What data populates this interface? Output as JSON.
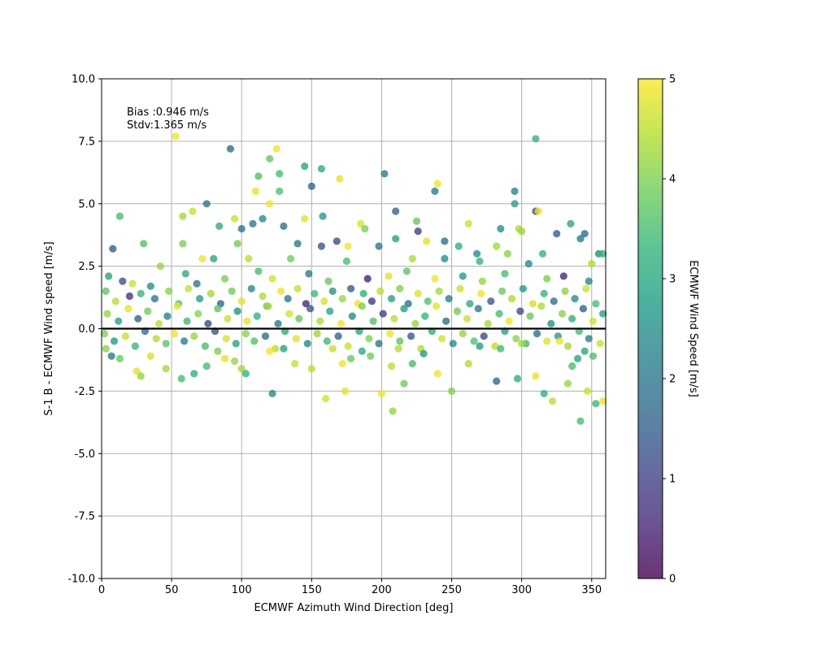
{
  "chart_data": {
    "type": "scatter",
    "title": "",
    "xlabel": "ECMWF Azimuth Wind Direction [deg]",
    "ylabel": "S-1 B - ECMWF Wind speed [m/s]",
    "xlim": [
      0,
      360
    ],
    "ylim": [
      -10,
      10
    ],
    "x_ticks": [
      "0",
      "50",
      "100",
      "150",
      "200",
      "250",
      "300",
      "350"
    ],
    "y_ticks": [
      "-10.0",
      "-7.5",
      "-5.0",
      "-2.5",
      "0.0",
      "2.5",
      "5.0",
      "7.5",
      "10.0"
    ],
    "grid": true,
    "zero_line": 0,
    "colormap": "viridis",
    "colorbar": {
      "label": "ECMWF Wind Speed [m/s]",
      "range": [
        0,
        5
      ],
      "ticks": [
        "0",
        "1",
        "2",
        "3",
        "4",
        "5"
      ],
      "colors": [
        "#440154",
        "#482878",
        "#3e4989",
        "#31688e",
        "#26828e",
        "#1f9e89",
        "#35b779",
        "#6ece58",
        "#b5de2b",
        "#fde725"
      ]
    },
    "annotations": [
      "Bias :0.946 m/s",
      "Stdv:1.365 m/s"
    ],
    "points": [
      [
        53,
        7.7,
        4.9
      ],
      [
        92,
        7.2,
        1.8
      ],
      [
        125,
        7.2,
        4.9
      ],
      [
        310,
        7.6,
        3.3
      ],
      [
        120,
        6.8,
        3.8
      ],
      [
        145,
        6.5,
        3.0
      ],
      [
        157,
        6.4,
        3.1
      ],
      [
        127,
        6.2,
        3.5
      ],
      [
        112,
        6.1,
        3.6
      ],
      [
        170,
        6.0,
        4.8
      ],
      [
        202,
        6.2,
        2.2
      ],
      [
        150,
        5.7,
        1.6
      ],
      [
        238,
        5.5,
        2.2
      ],
      [
        240,
        5.8,
        4.9
      ],
      [
        295,
        5.5,
        2.3
      ],
      [
        110,
        5.5,
        4.8
      ],
      [
        127,
        5.5,
        3.6
      ],
      [
        295,
        5.0,
        2.9
      ],
      [
        120,
        5.0,
        4.9
      ],
      [
        75,
        5.0,
        1.9
      ],
      [
        210,
        4.7,
        1.6
      ],
      [
        310,
        4.7,
        1.3
      ],
      [
        312,
        4.7,
        4.9
      ],
      [
        65,
        4.7,
        4.6
      ],
      [
        58,
        4.5,
        4.3
      ],
      [
        13,
        4.5,
        3.5
      ],
      [
        158,
        4.5,
        2.7
      ],
      [
        185,
        4.2,
        4.7
      ],
      [
        188,
        4.0,
        4.0
      ],
      [
        225,
        4.3,
        3.8
      ],
      [
        262,
        4.2,
        4.6
      ],
      [
        335,
        4.2,
        3.0
      ],
      [
        115,
        4.4,
        2.5
      ],
      [
        145,
        4.4,
        4.8
      ],
      [
        95,
        4.4,
        4.6
      ],
      [
        100,
        4.0,
        1.9
      ],
      [
        108,
        4.2,
        2.2
      ],
      [
        84,
        4.1,
        3.1
      ],
      [
        130,
        4.1,
        1.9
      ],
      [
        285,
        4.0,
        2.6
      ],
      [
        298,
        4.0,
        4.4
      ],
      [
        345,
        3.8,
        1.9
      ],
      [
        325,
        3.8,
        1.5
      ],
      [
        342,
        3.6,
        2.0
      ],
      [
        300,
        3.9,
        4.2
      ],
      [
        226,
        3.9,
        1.0
      ],
      [
        232,
        3.5,
        4.8
      ],
      [
        245,
        3.5,
        1.8
      ],
      [
        255,
        3.3,
        3.2
      ],
      [
        282,
        3.3,
        4.3
      ],
      [
        8,
        3.2,
        1.5
      ],
      [
        30,
        3.4,
        3.6
      ],
      [
        58,
        3.4,
        4.0
      ],
      [
        97,
        3.4,
        3.9
      ],
      [
        140,
        3.4,
        2.0
      ],
      [
        157,
        3.3,
        1.4
      ],
      [
        168,
        3.5,
        1.2
      ],
      [
        176,
        3.3,
        4.9
      ],
      [
        198,
        3.3,
        2.0
      ],
      [
        210,
        3.6,
        2.9
      ],
      [
        268,
        3.0,
        2.5
      ],
      [
        355,
        3.0,
        2.5
      ],
      [
        358,
        3.0,
        3.2
      ],
      [
        315,
        3.0,
        3.3
      ],
      [
        290,
        3.0,
        4.1
      ],
      [
        72,
        2.8,
        4.9
      ],
      [
        80,
        2.8,
        3.0
      ],
      [
        105,
        2.8,
        4.5
      ],
      [
        135,
        2.8,
        3.9
      ],
      [
        175,
        2.7,
        3.5
      ],
      [
        222,
        2.8,
        4.4
      ],
      [
        245,
        2.8,
        2.5
      ],
      [
        270,
        2.7,
        3.3
      ],
      [
        305,
        2.6,
        2.4
      ],
      [
        350,
        2.6,
        4.4
      ],
      [
        5,
        2.1,
        2.9
      ],
      [
        15,
        1.9,
        1.3
      ],
      [
        22,
        1.8,
        4.6
      ],
      [
        35,
        1.7,
        2.6
      ],
      [
        42,
        2.5,
        4.2
      ],
      [
        60,
        2.2,
        3.1
      ],
      [
        68,
        1.8,
        2.0
      ],
      [
        88,
        2.0,
        4.0
      ],
      [
        112,
        2.3,
        3.5
      ],
      [
        122,
        2.0,
        4.7
      ],
      [
        148,
        2.2,
        2.2
      ],
      [
        162,
        1.9,
        3.8
      ],
      [
        190,
        2.0,
        0.5
      ],
      [
        205,
        2.1,
        4.8
      ],
      [
        218,
        2.3,
        3.7
      ],
      [
        238,
        2.0,
        4.9
      ],
      [
        258,
        2.1,
        2.8
      ],
      [
        272,
        1.9,
        4.2
      ],
      [
        288,
        2.2,
        3.5
      ],
      [
        318,
        2.0,
        4.0
      ],
      [
        330,
        2.1,
        0.6
      ],
      [
        348,
        1.9,
        2.3
      ],
      [
        3,
        1.5,
        3.7
      ],
      [
        10,
        1.1,
        4.5
      ],
      [
        20,
        1.3,
        0.8
      ],
      [
        28,
        1.4,
        3.3
      ],
      [
        38,
        1.2,
        2.0
      ],
      [
        48,
        1.5,
        4.1
      ],
      [
        55,
        1.0,
        3.6
      ],
      [
        62,
        1.6,
        4.6
      ],
      [
        70,
        1.2,
        2.8
      ],
      [
        78,
        1.4,
        4.3
      ],
      [
        85,
        1.0,
        1.7
      ],
      [
        93,
        1.5,
        3.9
      ],
      [
        100,
        1.1,
        4.8
      ],
      [
        107,
        1.6,
        2.4
      ],
      [
        115,
        1.3,
        4.4
      ],
      [
        118,
        0.9,
        3.7
      ],
      [
        128,
        1.5,
        4.9
      ],
      [
        133,
        1.2,
        2.1
      ],
      [
        140,
        1.6,
        4.6
      ],
      [
        146,
        1.0,
        0.6
      ],
      [
        152,
        1.4,
        3.4
      ],
      [
        159,
        1.1,
        4.7
      ],
      [
        165,
        1.5,
        2.6
      ],
      [
        172,
        1.2,
        4.2
      ],
      [
        178,
        1.6,
        1.5
      ],
      [
        183,
        1.0,
        4.9
      ],
      [
        187,
        1.4,
        3.2
      ],
      [
        193,
        1.1,
        0.9
      ],
      [
        199,
        1.5,
        4.5
      ],
      [
        207,
        1.2,
        2.9
      ],
      [
        213,
        1.6,
        4.0
      ],
      [
        219,
        1.0,
        1.9
      ],
      [
        226,
        1.4,
        4.8
      ],
      [
        233,
        1.1,
        3.6
      ],
      [
        241,
        1.5,
        4.3
      ],
      [
        248,
        1.2,
        2.2
      ],
      [
        256,
        1.6,
        4.6
      ],
      [
        263,
        1.0,
        3.1
      ],
      [
        271,
        1.4,
        4.9
      ],
      [
        278,
        1.1,
        1.4
      ],
      [
        286,
        1.5,
        3.8
      ],
      [
        293,
        1.2,
        4.4
      ],
      [
        301,
        1.6,
        2.7
      ],
      [
        308,
        1.0,
        4.7
      ],
      [
        316,
        1.4,
        3.3
      ],
      [
        323,
        1.1,
        1.8
      ],
      [
        331,
        1.5,
        4.1
      ],
      [
        338,
        1.2,
        2.5
      ],
      [
        346,
        1.6,
        4.6
      ],
      [
        353,
        1.0,
        3.5
      ],
      [
        4,
        0.6,
        4.2
      ],
      [
        12,
        0.3,
        2.9
      ],
      [
        19,
        0.8,
        4.8
      ],
      [
        26,
        0.4,
        1.6
      ],
      [
        33,
        0.7,
        3.9
      ],
      [
        41,
        0.2,
        4.5
      ],
      [
        47,
        0.5,
        2.3
      ],
      [
        54,
        0.9,
        4.9
      ],
      [
        61,
        0.3,
        3.4
      ],
      [
        69,
        0.6,
        4.1
      ],
      [
        76,
        0.2,
        1.2
      ],
      [
        83,
        0.8,
        3.7
      ],
      [
        90,
        0.4,
        4.6
      ],
      [
        97,
        0.7,
        2.6
      ],
      [
        104,
        0.3,
        4.8
      ],
      [
        111,
        0.5,
        3.2
      ],
      [
        119,
        0.9,
        4.3
      ],
      [
        126,
        0.2,
        2.0
      ],
      [
        134,
        0.6,
        4.7
      ],
      [
        141,
        0.4,
        3.8
      ],
      [
        149,
        0.8,
        1.4
      ],
      [
        156,
        0.3,
        4.4
      ],
      [
        163,
        0.7,
        3.0
      ],
      [
        171,
        0.2,
        4.9
      ],
      [
        179,
        0.5,
        2.4
      ],
      [
        186,
        0.9,
        4.0
      ],
      [
        194,
        0.3,
        3.6
      ],
      [
        201,
        0.6,
        1.0
      ],
      [
        209,
        0.4,
        4.5
      ],
      [
        216,
        0.8,
        2.8
      ],
      [
        224,
        0.2,
        4.2
      ],
      [
        231,
        0.5,
        3.3
      ],
      [
        239,
        0.9,
        4.8
      ],
      [
        246,
        0.3,
        1.7
      ],
      [
        254,
        0.7,
        3.9
      ],
      [
        261,
        0.4,
        4.6
      ],
      [
        269,
        0.8,
        2.1
      ],
      [
        276,
        0.2,
        4.3
      ],
      [
        284,
        0.6,
        3.5
      ],
      [
        291,
        0.3,
        4.9
      ],
      [
        299,
        0.7,
        1.1
      ],
      [
        306,
        0.5,
        3.8
      ],
      [
        314,
        0.9,
        4.4
      ],
      [
        321,
        0.2,
        2.6
      ],
      [
        329,
        0.6,
        4.1
      ],
      [
        336,
        0.4,
        3.2
      ],
      [
        344,
        0.8,
        1.5
      ],
      [
        351,
        0.3,
        4.7
      ],
      [
        358,
        0.6,
        3.0
      ],
      [
        2,
        -0.2,
        4.0
      ],
      [
        9,
        -0.5,
        2.8
      ],
      [
        17,
        -0.3,
        4.6
      ],
      [
        24,
        -0.7,
        3.3
      ],
      [
        31,
        -0.1,
        1.9
      ],
      [
        39,
        -0.4,
        4.4
      ],
      [
        46,
        -0.6,
        3.7
      ],
      [
        52,
        -0.2,
        4.9
      ],
      [
        59,
        -0.5,
        2.2
      ],
      [
        66,
        -0.3,
        4.2
      ],
      [
        74,
        -0.7,
        3.5
      ],
      [
        81,
        -0.1,
        1.3
      ],
      [
        89,
        -0.4,
        4.7
      ],
      [
        96,
        -0.6,
        2.9
      ],
      [
        103,
        -0.2,
        4.1
      ],
      [
        109,
        -0.5,
        3.6
      ],
      [
        117,
        -0.3,
        1.8
      ],
      [
        124,
        -0.8,
        4.5
      ],
      [
        131,
        -0.1,
        3.1
      ],
      [
        139,
        -0.4,
        4.8
      ],
      [
        147,
        -0.6,
        2.4
      ],
      [
        154,
        -0.2,
        4.3
      ],
      [
        161,
        -0.5,
        3.4
      ],
      [
        169,
        -0.3,
        1.6
      ],
      [
        176,
        -0.7,
        4.6
      ],
      [
        184,
        -0.1,
        3.0
      ],
      [
        191,
        -0.4,
        4.0
      ],
      [
        198,
        -0.6,
        2.0
      ],
      [
        206,
        -0.2,
        4.9
      ],
      [
        213,
        -0.5,
        3.7
      ],
      [
        221,
        -0.3,
        1.4
      ],
      [
        228,
        -0.8,
        4.4
      ],
      [
        236,
        -0.1,
        3.2
      ],
      [
        243,
        -0.4,
        4.7
      ],
      [
        251,
        -0.6,
        2.5
      ],
      [
        258,
        -0.2,
        4.2
      ],
      [
        266,
        -0.5,
        3.6
      ],
      [
        273,
        -0.3,
        1.2
      ],
      [
        281,
        -0.7,
        4.5
      ],
      [
        288,
        -0.1,
        2.9
      ],
      [
        296,
        -0.4,
        4.1
      ],
      [
        303,
        -0.6,
        3.4
      ],
      [
        311,
        -0.2,
        1.9
      ],
      [
        318,
        -0.5,
        4.8
      ],
      [
        326,
        -0.3,
        2.7
      ],
      [
        333,
        -0.7,
        4.3
      ],
      [
        341,
        -0.1,
        3.5
      ],
      [
        348,
        -0.4,
        2.2
      ],
      [
        356,
        -0.6,
        4.6
      ],
      [
        7,
        -1.1,
        2.1
      ],
      [
        25,
        -1.7,
        4.8
      ],
      [
        28,
        -1.9,
        4.2
      ],
      [
        46,
        -1.6,
        4.3
      ],
      [
        57,
        -2.0,
        3.5
      ],
      [
        66,
        -1.8,
        3.2
      ],
      [
        83,
        -0.9,
        4.0
      ],
      [
        100,
        -1.6,
        4.3
      ],
      [
        103,
        -1.8,
        3.3
      ],
      [
        130,
        -0.8,
        2.9
      ],
      [
        138,
        -1.4,
        4.6
      ],
      [
        150,
        -1.6,
        4.5
      ],
      [
        160,
        -2.8,
        4.7
      ],
      [
        174,
        -2.5,
        4.8
      ],
      [
        178,
        -1.2,
        3.8
      ],
      [
        192,
        -1.1,
        3.9
      ],
      [
        200,
        -2.6,
        4.9
      ],
      [
        207,
        -1.5,
        4.5
      ],
      [
        208,
        -3.3,
        4.2
      ],
      [
        216,
        -2.2,
        3.9
      ],
      [
        222,
        -1.4,
        3.5
      ],
      [
        240,
        -1.8,
        4.9
      ],
      [
        250,
        -2.5,
        4.0
      ],
      [
        262,
        -1.4,
        4.4
      ],
      [
        282,
        -2.1,
        1.7
      ],
      [
        297,
        -2.0,
        3.2
      ],
      [
        310,
        -1.9,
        4.8
      ],
      [
        316,
        -2.6,
        3.2
      ],
      [
        322,
        -2.9,
        4.5
      ],
      [
        333,
        -2.2,
        4.2
      ],
      [
        336,
        -1.5,
        3.5
      ],
      [
        340,
        -1.2,
        3.0
      ],
      [
        342,
        -3.7,
        3.5
      ],
      [
        347,
        -2.5,
        4.6
      ],
      [
        353,
        -3.0,
        3.4
      ],
      [
        358,
        -2.9,
        4.9
      ],
      [
        122,
        -2.6,
        2.4
      ],
      [
        120,
        -0.9,
        4.9
      ],
      [
        285,
        -0.8,
        3.4
      ],
      [
        270,
        -0.7,
        2.8
      ],
      [
        3,
        -0.8,
        4.1
      ],
      [
        13,
        -1.2,
        3.8
      ],
      [
        35,
        -1.1,
        4.7
      ],
      [
        75,
        -1.5,
        3.5
      ],
      [
        88,
        -1.2,
        4.8
      ],
      [
        95,
        -1.3,
        4.2
      ],
      [
        165,
        -0.8,
        4.6
      ],
      [
        172,
        -1.4,
        4.9
      ],
      [
        186,
        -0.9,
        3.1
      ],
      [
        212,
        -0.8,
        4.4
      ],
      [
        230,
        -1.0,
        2.7
      ],
      [
        300,
        -0.6,
        4.3
      ],
      [
        327,
        -0.5,
        4.9
      ],
      [
        345,
        -0.9,
        3.0
      ],
      [
        351,
        -1.1,
        3.6
      ]
    ]
  }
}
